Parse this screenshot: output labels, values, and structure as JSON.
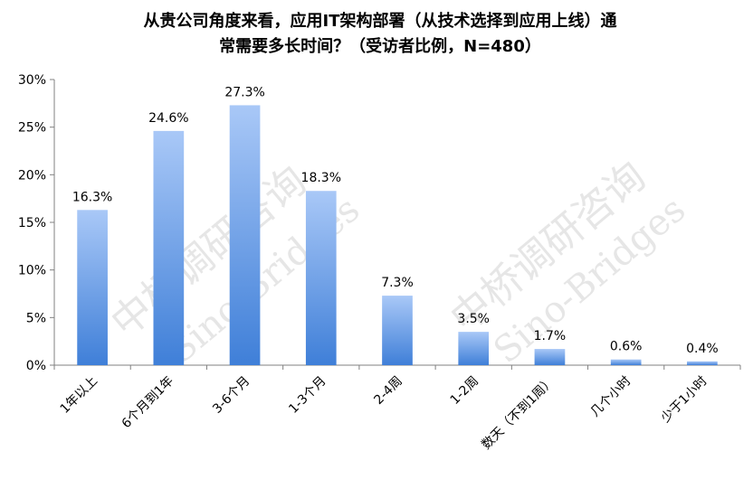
{
  "chart_data": {
    "type": "bar",
    "title_lines": [
      "从贵公司角度来看，应用IT架构部署（从技术选择到应用上线）通",
      "常需要多长时间？（受访者比例，N=480）"
    ],
    "categories": [
      "1年以上",
      "6个月到1年",
      "3-6个月",
      "1-3个月",
      "2-4周",
      "1-2周",
      "数天（不到1周）",
      "几个小时",
      "少于1小时"
    ],
    "values": [
      16.3,
      24.6,
      27.3,
      18.3,
      7.3,
      3.5,
      1.7,
      0.6,
      0.4
    ],
    "value_labels": [
      "16.3%",
      "24.6%",
      "27.3%",
      "18.3%",
      "7.3%",
      "3.5%",
      "1.7%",
      "0.6%",
      "0.4%"
    ],
    "ylim": [
      0,
      30
    ],
    "yticks": [
      0,
      5,
      10,
      15,
      20,
      25,
      30
    ],
    "ytick_labels": [
      "0%",
      "5%",
      "10%",
      "15%",
      "20%",
      "25%",
      "30%"
    ],
    "grid": false,
    "legend": "none",
    "bar_color_top": "#a9c8f7",
    "bar_color_bottom": "#3f7fd8"
  },
  "watermark": {
    "lines": [
      "中桥调研咨询",
      "Sino-Bridges"
    ]
  }
}
